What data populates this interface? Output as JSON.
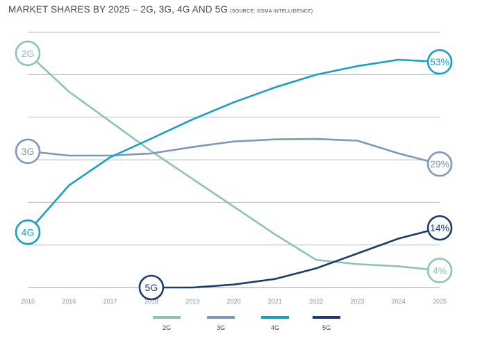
{
  "title": "MARKET SHARES BY 2025 – 2G, 3G, 4G AND 5G",
  "subtitle": "(SOURCE: GSMA INTELLIGENCE)",
  "chart_data": {
    "type": "line",
    "title": "MARKET SHARES BY 2025 – 2G, 3G, 4G AND 5G",
    "subtitle": "(SOURCE: GSMA INTELLIGENCE)",
    "x": [
      2015,
      2016,
      2017,
      2018,
      2019,
      2020,
      2021,
      2022,
      2023,
      2024,
      2025
    ],
    "ylim": [
      0,
      60
    ],
    "grid": true,
    "legend_position": "bottom",
    "series": [
      {
        "name": "2G",
        "color": "#8ec1bb",
        "values": [
          55,
          46,
          39,
          32,
          25.5,
          19,
          12.5,
          6.5,
          5.5,
          5,
          4
        ],
        "start_label": "2G",
        "end_label": "4%"
      },
      {
        "name": "3G",
        "color": "#7d97bd",
        "values": [
          32,
          31,
          31,
          31.5,
          33,
          34.3,
          34.8,
          34.9,
          34.5,
          31.5,
          29
        ],
        "start_label": "3G",
        "end_label": "29%"
      },
      {
        "name": "4G",
        "color": "#17a0c4",
        "values": [
          13,
          24,
          30.6,
          35,
          39.5,
          43.5,
          47,
          50,
          52,
          53.5,
          53
        ],
        "start_label": "4G",
        "end_label": "53%"
      },
      {
        "name": "5G",
        "color": "#1c3b6b",
        "values": [
          null,
          null,
          null,
          0,
          0,
          0.7,
          2,
          4.5,
          8,
          11.5,
          14
        ],
        "start_label": "5G",
        "end_label": "14%"
      }
    ]
  }
}
